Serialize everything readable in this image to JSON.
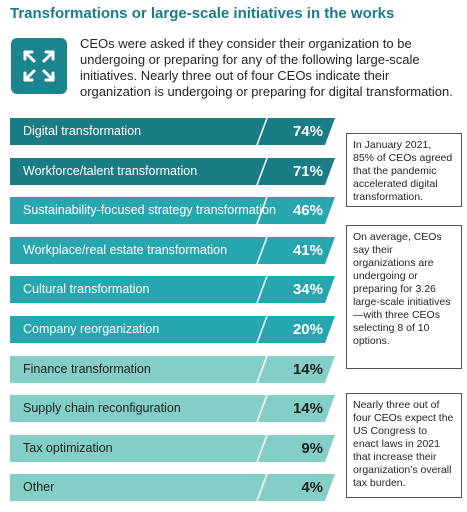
{
  "header": {
    "title": "Transformations or large-scale initiatives in the works",
    "icon": "expand-arrows-icon",
    "intro": "CEOs were asked if they consider their organization to be undergoing or preparing for any of the following large-scale initiatives. Nearly three out of four CEOs indicate their organization is undergoing or preparing for digital transformation."
  },
  "colors": {
    "dark_teal": "#1a7d86",
    "mid_teal": "#27a6b0",
    "light_teal": "#83cfc8",
    "title": "#1a7d86"
  },
  "chart_data": {
    "type": "bar",
    "orientation": "horizontal",
    "title": "",
    "xlabel": "",
    "ylabel": "",
    "categories": [
      "Digital transformation",
      "Workforce/talent transformation",
      "Sustainability-focused strategy transformation",
      "Workplace/real estate transformation",
      "Cultural transformation",
      "Company reorganization",
      "Finance transformation",
      "Supply chain reconfiguration",
      "Tax optimization",
      "Other"
    ],
    "values": [
      74,
      71,
      46,
      41,
      34,
      20,
      14,
      14,
      9,
      4
    ],
    "value_labels": [
      "74%",
      "71%",
      "46%",
      "41%",
      "34%",
      "20%",
      "14%",
      "14%",
      "9%",
      "4%"
    ],
    "unit": "%",
    "xlim": [
      0,
      100
    ],
    "grid": false,
    "legend": "none"
  },
  "callouts": [
    "In January 2021, 85% of CEOs agreed that the pandemic accelerated digital transformation.",
    "On average, CEOs say their organizations are undergoing or preparing for 3.26 large-scale initiatives—with three CEOs selecting 8 of 10 options.",
    "Nearly three out of four CEOs expect the US Congress to enact laws in 2021 that increase their organization’s overall tax burden."
  ]
}
